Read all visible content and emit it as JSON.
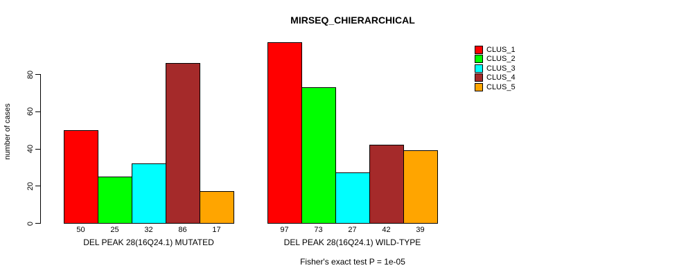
{
  "chart_data": {
    "type": "bar",
    "title": "MIRSEQ_CHIERARCHICAL",
    "ylabel": "number of cases",
    "xlabel": "",
    "ylim": [
      0,
      80
    ],
    "yticks": [
      0,
      20,
      40,
      60,
      80
    ],
    "grid": false,
    "legend_position": "right",
    "series": [
      "CLUS_1",
      "CLUS_2",
      "CLUS_3",
      "CLUS_4",
      "CLUS_5"
    ],
    "series_colors": [
      "#ff0000",
      "#00ff00",
      "#00ffff",
      "#a52a2a",
      "#ffa500"
    ],
    "groups": [
      {
        "label": "DEL PEAK 28(16Q24.1) MUTATED",
        "values": [
          50,
          25,
          32,
          86,
          17
        ]
      },
      {
        "label": "DEL PEAK 28(16Q24.1) WILD-TYPE",
        "values": [
          97,
          73,
          27,
          42,
          39
        ]
      }
    ],
    "legend": [
      {
        "label": "CLUS_1",
        "color": "#ff0000"
      },
      {
        "label": "CLUS_2",
        "color": "#00ff00"
      },
      {
        "label": "CLUS_3",
        "color": "#00ffff"
      },
      {
        "label": "CLUS_4",
        "color": "#a52a2a"
      },
      {
        "label": "CLUS_5",
        "color": "#ffa500"
      }
    ],
    "annotation": "Fisher's exact test P = 1e-05",
    "bar_border_color": "#000000",
    "axis_color": "#000000",
    "text_color": "#000000",
    "background_color": "#ffffff"
  }
}
